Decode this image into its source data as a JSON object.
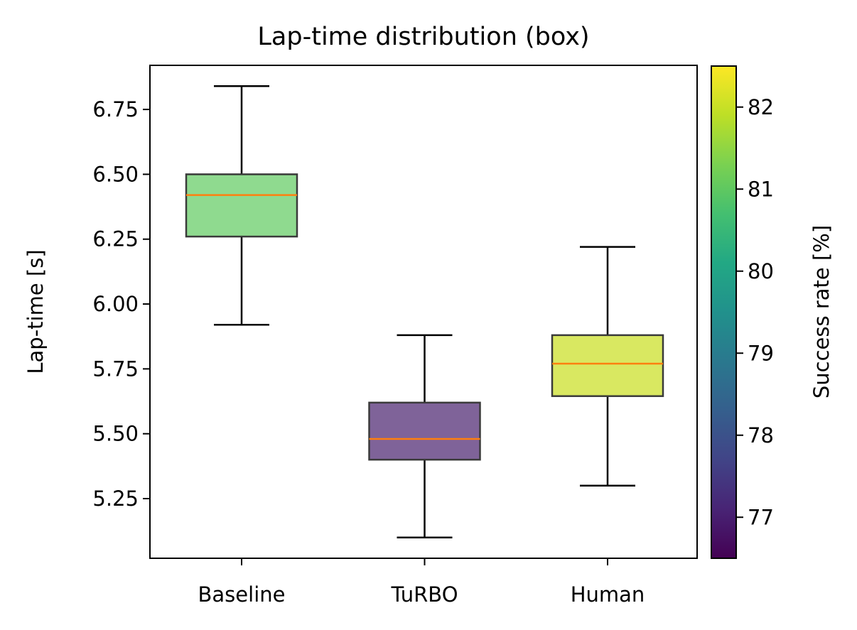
{
  "chart_data": {
    "type": "box",
    "title": "Lap-time distribution (box)",
    "xlabel": "",
    "ylabel": "Lap-time [s]",
    "categories": [
      "Baseline",
      "TuRBO",
      "Human"
    ],
    "boxes": [
      {
        "category": "Baseline",
        "whisker_low": 5.92,
        "q1": 6.26,
        "median": 6.42,
        "q3": 6.5,
        "whisker_high": 6.84,
        "success_rate": 80.9,
        "color": "#8fda8f"
      },
      {
        "category": "TuRBO",
        "whisker_low": 5.1,
        "q1": 5.4,
        "median": 5.48,
        "q3": 5.62,
        "whisker_high": 5.88,
        "success_rate": 77.4,
        "color": "#7f6399"
      },
      {
        "category": "Human",
        "whisker_low": 5.3,
        "q1": 5.645,
        "median": 5.77,
        "q3": 5.88,
        "whisker_high": 6.22,
        "success_rate": 82.0,
        "color": "#d9e861"
      }
    ],
    "median_color": "#ff7f0e",
    "ylim": [
      5.02,
      6.92
    ],
    "yticks": [
      5.25,
      5.5,
      5.75,
      6.0,
      6.25,
      6.5,
      6.75
    ],
    "ytick_labels": [
      "5.25",
      "5.50",
      "5.75",
      "6.00",
      "6.25",
      "6.50",
      "6.75"
    ],
    "colorbar": {
      "label": "Success rate [%]",
      "colormap": "viridis",
      "range": [
        76.5,
        82.5
      ],
      "ticks": [
        77,
        78,
        79,
        80,
        81,
        82
      ],
      "tick_labels": [
        "77",
        "78",
        "79",
        "80",
        "81",
        "82"
      ]
    },
    "grid": false,
    "legend": "none"
  }
}
